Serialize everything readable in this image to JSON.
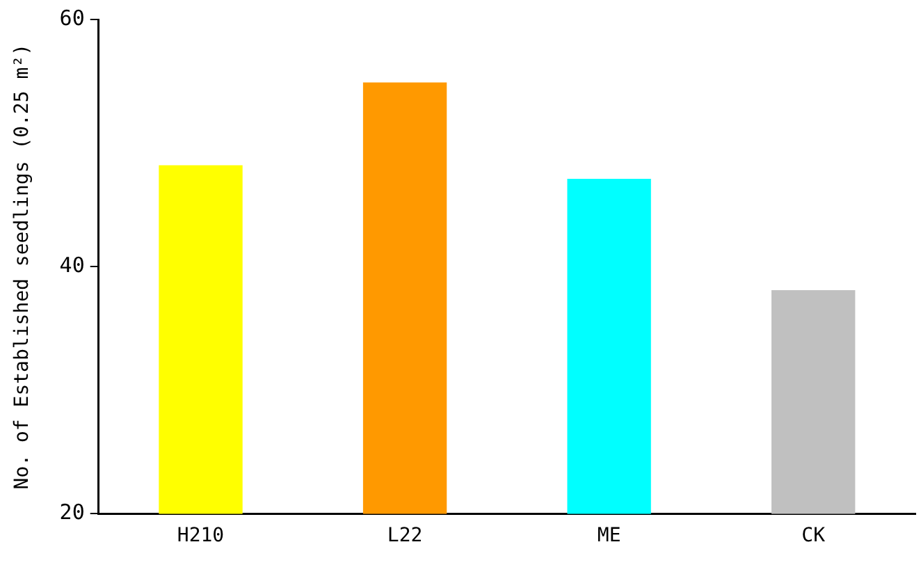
{
  "chart_data": {
    "type": "bar",
    "ylabel": "No. of Established seedlings (0.25 m²)",
    "categories": [
      "H210",
      "L22",
      "ME",
      "CK"
    ],
    "values": [
      48.2,
      54.9,
      47.1,
      38.1
    ],
    "colors": [
      "#ffff00",
      "#ff9900",
      "#00ffff",
      "#c0c0c0"
    ],
    "ylim": [
      20,
      60
    ],
    "yticks": [
      20,
      40,
      60
    ],
    "grid": false,
    "legend": false
  }
}
